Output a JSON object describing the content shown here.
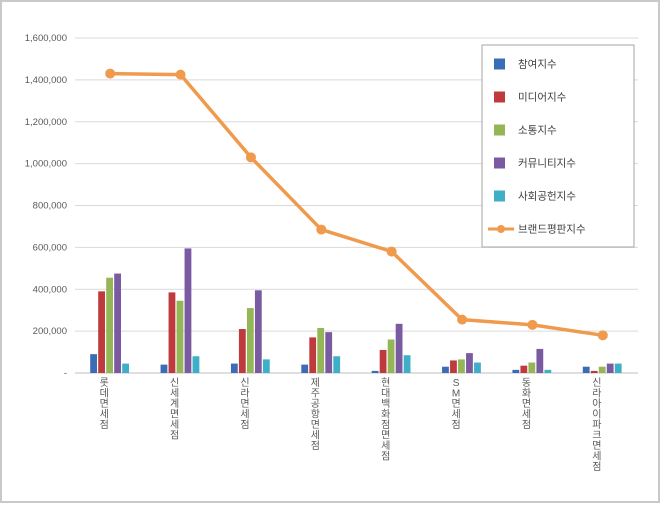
{
  "chart_data": {
    "type": "bar+line",
    "title": "",
    "xlabel": "",
    "ylabel": "",
    "categories": [
      "롯데면세점",
      "신세계면세점",
      "신라면세점",
      "제주공항면세점",
      "현대백화점면세점",
      "SM면세점",
      "동화면세점",
      "신라아이파크면세점"
    ],
    "bar_series": [
      {
        "name": "참여지수",
        "color": "#3a6db5",
        "values": [
          90000,
          40000,
          45000,
          40000,
          10000,
          30000,
          15000,
          30000
        ]
      },
      {
        "name": "미디어지수",
        "color": "#bf3a3d",
        "values": [
          390000,
          385000,
          210000,
          170000,
          110000,
          60000,
          35000,
          10000
        ]
      },
      {
        "name": "소통지수",
        "color": "#95b656",
        "values": [
          455000,
          345000,
          310000,
          215000,
          160000,
          65000,
          50000,
          30000
        ]
      },
      {
        "name": "커뮤니티지수",
        "color": "#7a5ba1",
        "values": [
          475000,
          595000,
          395000,
          195000,
          235000,
          95000,
          115000,
          45000
        ]
      },
      {
        "name": "사회공헌지수",
        "color": "#3fafc7",
        "values": [
          45000,
          80000,
          65000,
          80000,
          85000,
          50000,
          15000,
          45000
        ]
      }
    ],
    "line_series": {
      "name": "브랜드평판지수",
      "color": "#f09a4d",
      "values": [
        1430000,
        1425000,
        1030000,
        685000,
        580000,
        255000,
        230000,
        180000
      ]
    },
    "ylim": [
      0,
      1600000
    ],
    "ytick_step": 200000,
    "ytick_labels": [
      "-",
      "200,000",
      "400,000",
      "600,000",
      "800,000",
      "1,000,000",
      "1,200,000",
      "1,400,000",
      "1,600,000"
    ],
    "grid": true,
    "grid_color": "#d9d9d9",
    "axis_color": "#bfbfbf",
    "text_color": "#595959",
    "legend_position": "inside-top-right",
    "legend_border_color": "#a6a6a6"
  }
}
